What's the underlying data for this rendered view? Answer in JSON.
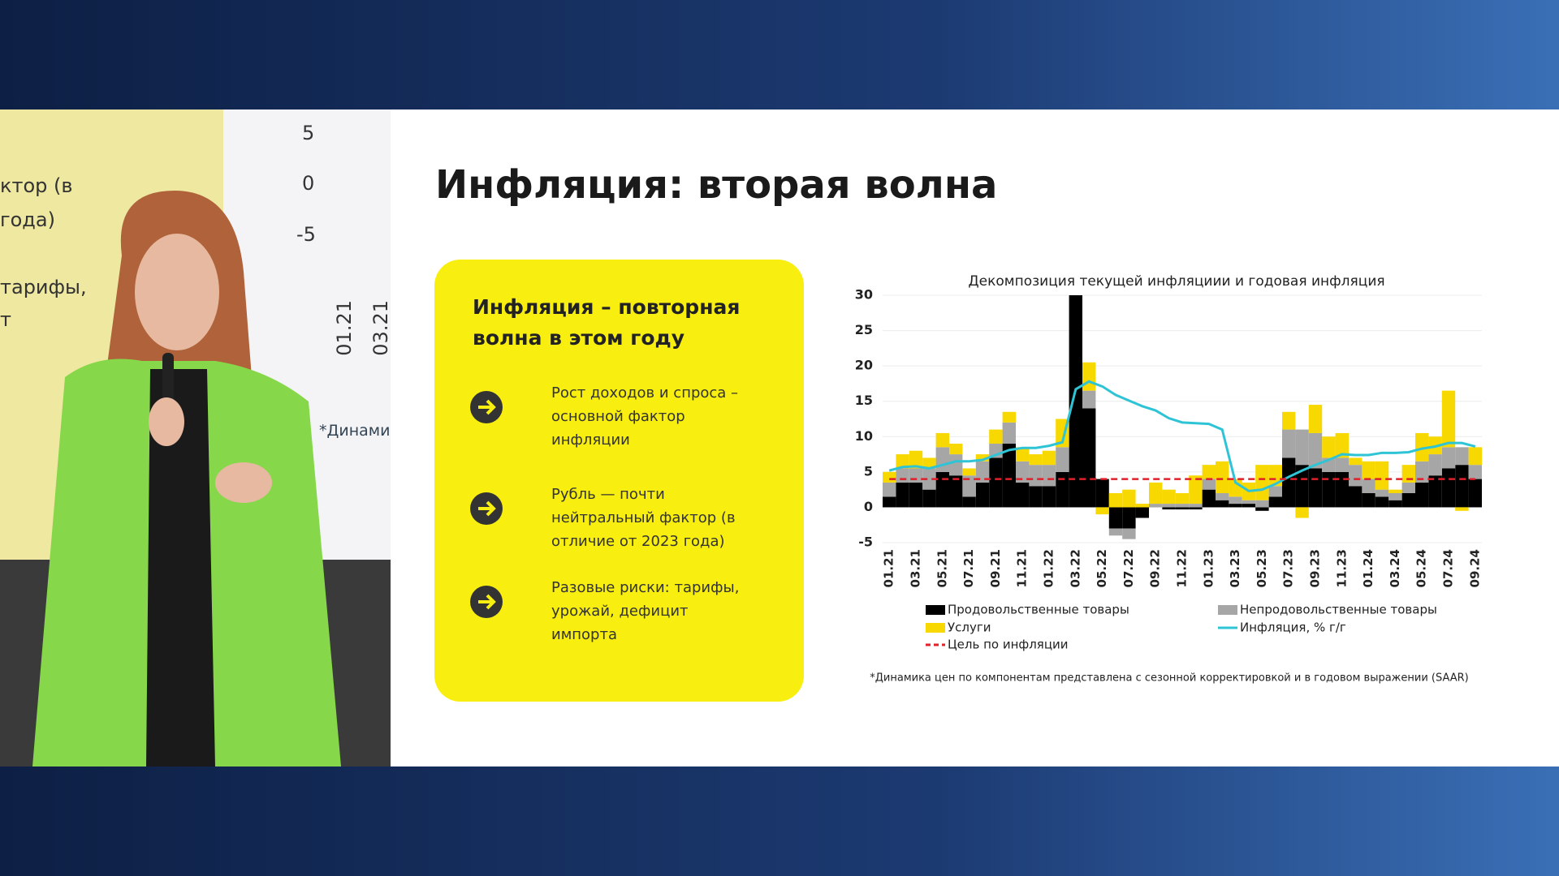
{
  "slide": {
    "title": "Инфляция: вторая волна",
    "card": {
      "heading": "Инфляция – повторная волна в этом году",
      "items": [
        "Рост доходов и спроса – основной фактор инфляции",
        "Рубль — почти нейтральный фактор (в отличие от 2023 года)",
        "Разовые риски: тарифы, урожай, дефицит импорта"
      ]
    },
    "footnote": "*Динамика цен по компонентам представлена с сезонной корректировкой и в годовом выражении (SAAR)"
  },
  "background_screen": {
    "fragments": [
      "ктор (в",
      "года)",
      "тарифы,",
      "т",
      "*Динами"
    ],
    "yticks": [
      "5",
      "0",
      "-5"
    ],
    "xticks": [
      "01.21",
      "03.21"
    ]
  },
  "chart_data": {
    "type": "bar",
    "stacked": true,
    "title": "Декомпозиция текущей инфляциии и годовая инфляция",
    "categories": [
      "01.21",
      null,
      "03.21",
      null,
      "05.21",
      null,
      "07.21",
      null,
      "09.21",
      null,
      "11.21",
      null,
      "01.22",
      null,
      "03.22",
      null,
      "05.22",
      null,
      "07.22",
      null,
      "09.22",
      null,
      "11.22",
      null,
      "01.23",
      null,
      "03.23",
      null,
      "05.23",
      null,
      "07.23",
      null,
      "09.23",
      null,
      "11.23",
      null,
      "01.24",
      null,
      "03.24",
      null,
      "05.24",
      null,
      "07.24",
      null,
      "09.24"
    ],
    "series": [
      {
        "name": "Продовольственные товары",
        "color": "#000000",
        "values": [
          1.5,
          3.5,
          3.5,
          2.5,
          5,
          4.5,
          1.5,
          3.5,
          7,
          9,
          3.5,
          3,
          3,
          5,
          30,
          14,
          4,
          -3,
          -3,
          -1.5,
          0,
          -0.3,
          -0.3,
          -0.3,
          2.5,
          1,
          0.5,
          0.5,
          -0.5,
          1.5,
          7,
          6,
          5.5,
          5,
          5,
          3,
          2,
          1.5,
          1,
          2,
          3.5,
          4.5,
          5.5,
          6,
          4
        ]
      },
      {
        "name": "Непродовольственные товары",
        "color": "#a6a6a6",
        "values": [
          2,
          2,
          2,
          3,
          3.5,
          3,
          3,
          3,
          2,
          3,
          3,
          3,
          3,
          3.5,
          0,
          2.5,
          0,
          -1,
          -1.5,
          0,
          0.5,
          0.5,
          0.5,
          0.5,
          1.5,
          1,
          1,
          0.5,
          1,
          1.5,
          4,
          5,
          5,
          2,
          2,
          3,
          2,
          1,
          1,
          1.5,
          3,
          3,
          3,
          2.5,
          2
        ]
      },
      {
        "name": "Услуги",
        "color": "#f7d800",
        "values": [
          1.5,
          2,
          2.5,
          1.5,
          2,
          1.5,
          1,
          1,
          2,
          1.5,
          2,
          1.5,
          2,
          4,
          0,
          4,
          -1,
          2,
          2.5,
          0.5,
          3,
          2,
          1.5,
          4,
          2,
          4.5,
          2.5,
          2.5,
          5,
          3,
          2.5,
          -1.5,
          4,
          3,
          3.5,
          1,
          2.5,
          4,
          0.5,
          2.5,
          4,
          2.5,
          8,
          -0.5,
          2.5
        ]
      },
      {
        "name": "Инфляция, % г/г",
        "type": "line",
        "color": "#2ec4d6",
        "values": [
          5.2,
          5.7,
          5.8,
          5.5,
          6,
          6.5,
          6.5,
          6.7,
          7.4,
          8.1,
          8.4,
          8.4,
          8.7,
          9.2,
          16.7,
          17.8,
          17.1,
          15.9,
          15.1,
          14.3,
          13.7,
          12.6,
          12,
          11.9,
          11.8,
          11,
          3.5,
          2.3,
          2.5,
          3.3,
          4.3,
          5.2,
          6,
          6.7,
          7.5,
          7.4,
          7.4,
          7.7,
          7.7,
          7.8,
          8.3,
          8.6,
          9.1,
          9.1,
          8.6
        ]
      },
      {
        "name": "Цель по инфляции",
        "type": "line",
        "dashed": true,
        "color": "#e0202a",
        "values": [
          4,
          4,
          4,
          4,
          4,
          4,
          4,
          4,
          4,
          4,
          4,
          4,
          4,
          4,
          4,
          4,
          4,
          4,
          4,
          4,
          4,
          4,
          4,
          4,
          4,
          4,
          4,
          4,
          4,
          4,
          4,
          4,
          4,
          4,
          4,
          4,
          4,
          4,
          4,
          4,
          4,
          4,
          4,
          4,
          4
        ]
      }
    ],
    "ylim": [
      -5,
      30
    ],
    "yticks": [
      -5,
      0,
      5,
      10,
      15,
      20,
      25,
      30
    ],
    "grid": true
  }
}
